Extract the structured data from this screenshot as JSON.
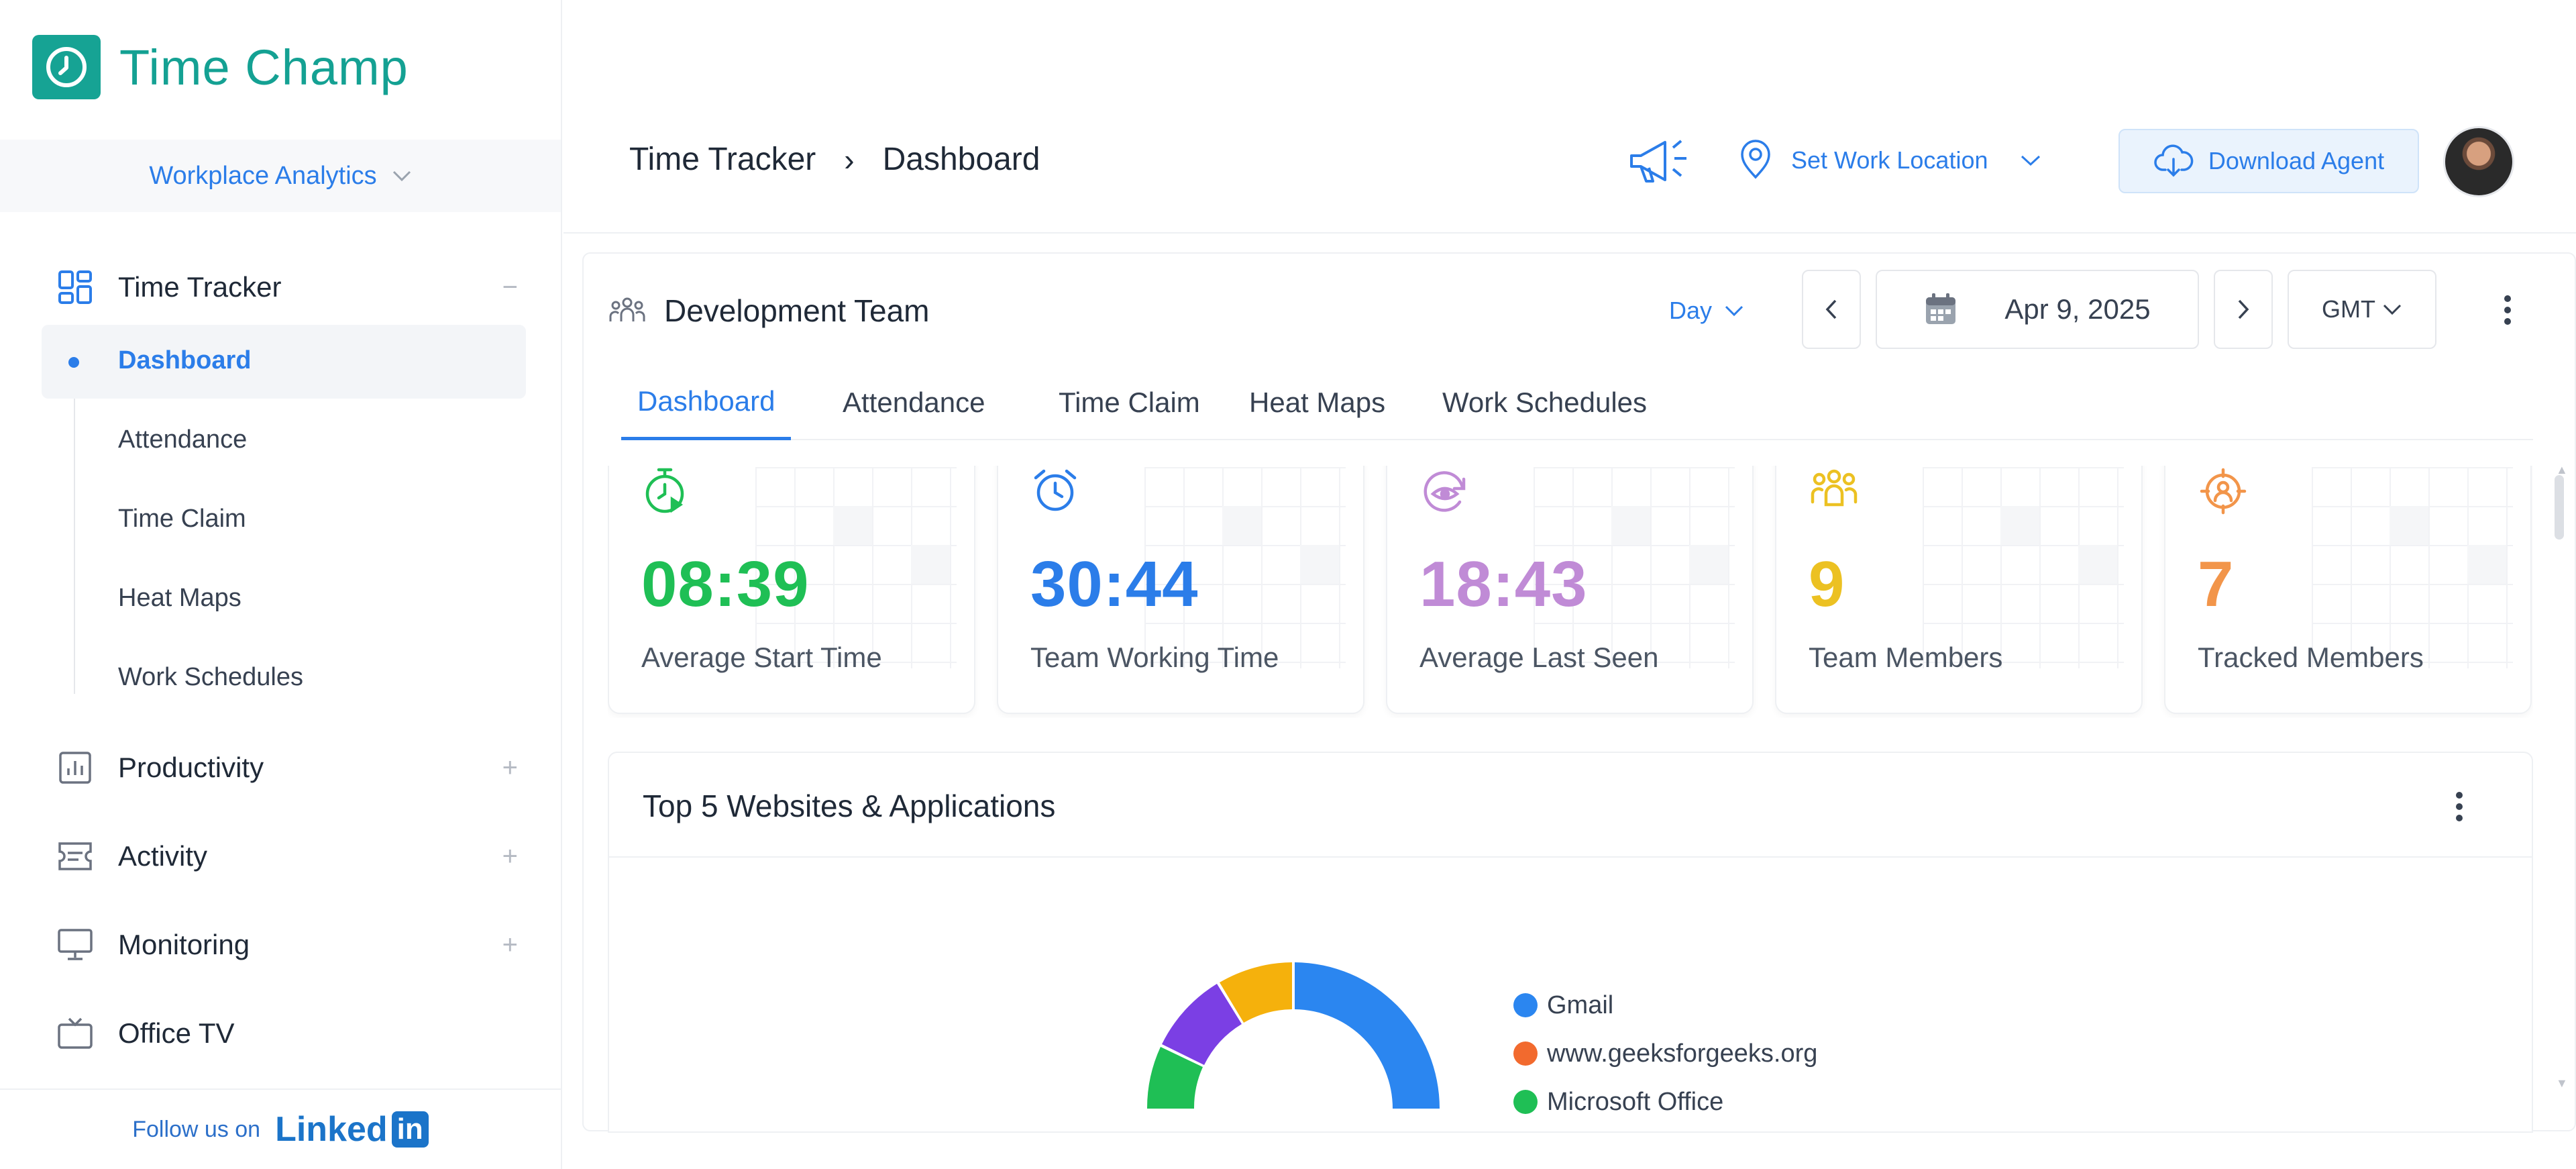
{
  "app": {
    "name": "Time Champ"
  },
  "workspace": {
    "label": "Workplace Analytics"
  },
  "sidebar": {
    "groups": [
      {
        "label": "Time Tracker",
        "toggle": "−"
      },
      {
        "label": "Productivity",
        "toggle": "+"
      },
      {
        "label": "Activity",
        "toggle": "+"
      },
      {
        "label": "Monitoring",
        "toggle": "+"
      },
      {
        "label": "Office TV"
      }
    ],
    "sub_items": [
      "Dashboard",
      "Attendance",
      "Time Claim",
      "Heat Maps",
      "Work Schedules"
    ],
    "follow_text": "Follow us on",
    "linkedin_text": "Linked",
    "linkedin_in": "in"
  },
  "header": {
    "breadcrumb": [
      "Time Tracker",
      "Dashboard"
    ],
    "breadcrumb_sep": "›",
    "location_label": "Set Work Location",
    "download_label": "Download Agent"
  },
  "panel": {
    "team_name": "Development Team",
    "period": "Day",
    "date": "Apr 9, 2025",
    "timezone": "GMT",
    "tabs": [
      "Dashboard",
      "Attendance",
      "Time Claim",
      "Heat Maps",
      "Work Schedules"
    ],
    "active_tab": "Dashboard",
    "cards": [
      {
        "value": "08:39",
        "label": "Average Start Time",
        "color": "#1fbf55",
        "icon": "stopwatch-icon"
      },
      {
        "value": "30:44",
        "label": "Team Working Time",
        "color": "#2b7de9",
        "icon": "alarm-clock-icon"
      },
      {
        "value": "18:43",
        "label": "Average Last Seen",
        "color": "#c08bd6",
        "icon": "eye-refresh-icon"
      },
      {
        "value": "9",
        "label": "Team Members",
        "color": "#ecc122",
        "icon": "team-icon"
      },
      {
        "value": "7",
        "label": "Tracked Members",
        "color": "#f2954a",
        "icon": "target-user-icon"
      }
    ]
  },
  "apps": {
    "title": "Top 5 Websites & Applications",
    "legend": [
      {
        "name": "Gmail",
        "color": "#2b86f0"
      },
      {
        "name": "www.geeksforgeeks.org",
        "color": "#f26a2e"
      },
      {
        "name": "Microsoft Office",
        "color": "#1fbf55"
      }
    ],
    "segment_colors": [
      "#2b86f0",
      "#f5b10c",
      "#7b3fe4",
      "#1fbf55"
    ]
  }
}
